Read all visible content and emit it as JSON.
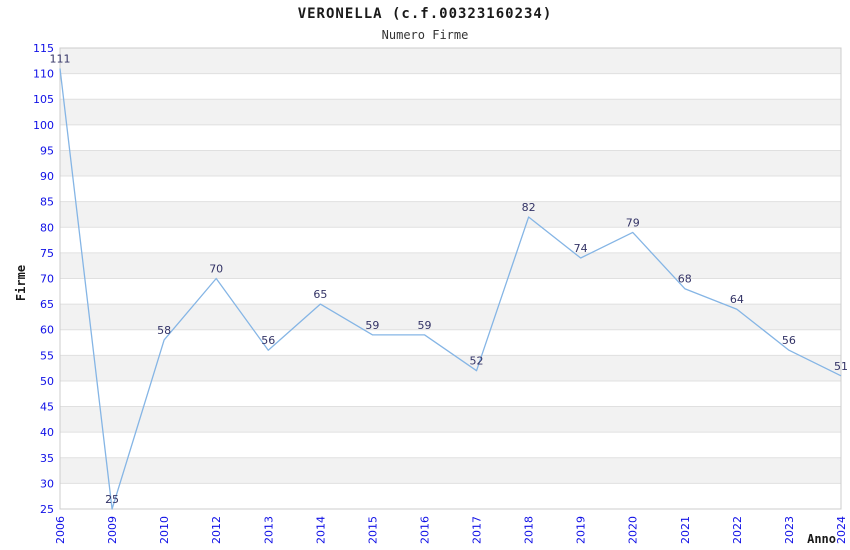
{
  "header": {
    "title": "VERONELLA (c.f.00323160234)",
    "subtitle": "Numero Firme"
  },
  "chart_data": {
    "type": "line",
    "title": "VERONELLA (c.f.00323160234)",
    "subtitle": "Numero Firme",
    "xlabel": "Anno",
    "ylabel": "Firme",
    "categories": [
      "2006",
      "2009",
      "2010",
      "2012",
      "2013",
      "2014",
      "2015",
      "2016",
      "2017",
      "2018",
      "2019",
      "2020",
      "2021",
      "2022",
      "2023",
      "2024"
    ],
    "values": [
      111,
      25,
      58,
      70,
      56,
      65,
      59,
      59,
      52,
      82,
      74,
      79,
      68,
      64,
      56,
      51
    ],
    "ylim": [
      25,
      115
    ],
    "ytick_step": 5,
    "grid": "horizontal-alternating-bands",
    "legend": "none",
    "colors": {
      "line": "#85b5e5",
      "tick_label": "#0f0fe6",
      "data_label": "#333366",
      "band": "#f2f2f2",
      "gridline": "#e0e0e0",
      "plot_border": "#cccccc",
      "axis_title": "#1a1a1a"
    }
  }
}
